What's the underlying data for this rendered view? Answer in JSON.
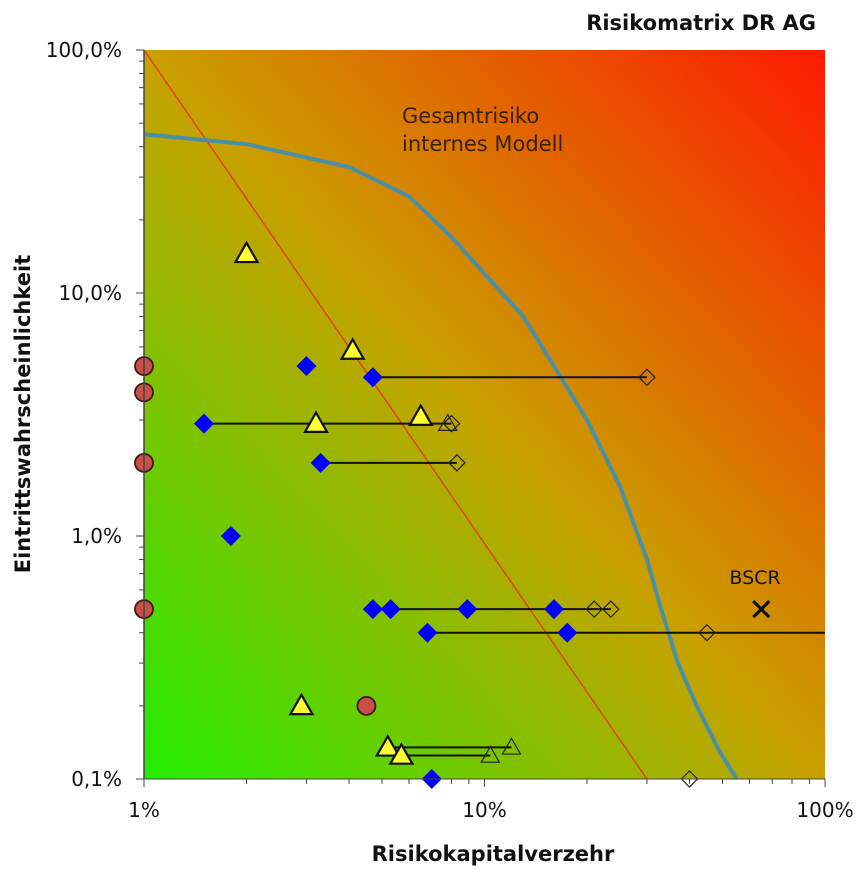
{
  "chart_data": {
    "type": "scatter",
    "title": "Risikomatrix DR AG",
    "xlabel": "Risikokapitalverzehr",
    "ylabel": "Eintrittswahrscheinlichkeit",
    "x_scale": "log",
    "y_scale": "log",
    "xlim": [
      0.01,
      1.0
    ],
    "ylim": [
      0.001,
      1.0
    ],
    "x_ticks": [
      {
        "value": 0.01,
        "label": "1%"
      },
      {
        "value": 0.1,
        "label": "10%"
      },
      {
        "value": 1.0,
        "label": "100%"
      }
    ],
    "y_ticks": [
      {
        "value": 0.001,
        "label": "0,1%"
      },
      {
        "value": 0.01,
        "label": "1,0%"
      },
      {
        "value": 0.1,
        "label": "10,0%"
      },
      {
        "value": 1.0,
        "label": "100,0%"
      }
    ],
    "background_gradient": {
      "bottom_left": "#22ee00",
      "middle": "#c9a000",
      "top_right": "#ff1a00"
    },
    "annotations": [
      {
        "text_lines": [
          "Gesamtrisiko",
          "internes Modell"
        ],
        "x": 0.047,
        "y": 0.52
      },
      {
        "text": "BSCR",
        "x": 0.62,
        "y": 0.0007
      }
    ],
    "series": [
      {
        "marker": "circle",
        "color": "#c9504a",
        "points": [
          [
            0.01,
            0.05
          ],
          [
            0.01,
            0.039
          ],
          [
            0.01,
            0.02
          ],
          [
            0.01,
            0.005
          ],
          [
            0.045,
            0.002
          ]
        ]
      },
      {
        "marker": "triangle",
        "color": "#ffff33",
        "points": [
          [
            0.02,
            0.145
          ],
          [
            0.041,
            0.058
          ],
          [
            0.032,
            0.029
          ],
          [
            0.065,
            0.031
          ],
          [
            0.029,
            0.002
          ],
          [
            0.052,
            0.00135
          ],
          [
            0.057,
            0.00125
          ]
        ]
      },
      {
        "marker": "diamond",
        "color": "#0000ff",
        "points": [
          [
            0.03,
            0.05
          ],
          [
            0.047,
            0.045
          ],
          [
            0.015,
            0.029
          ],
          [
            0.033,
            0.02
          ],
          [
            0.018,
            0.01
          ],
          [
            0.047,
            0.005
          ],
          [
            0.053,
            0.005
          ],
          [
            0.089,
            0.005
          ],
          [
            0.16,
            0.005
          ],
          [
            0.068,
            0.004
          ],
          [
            0.175,
            0.004
          ],
          [
            0.07,
            0.001
          ]
        ]
      },
      {
        "marker": "open-diamond",
        "color": "#222222",
        "points": [
          [
            0.3,
            0.045
          ],
          [
            0.08,
            0.029
          ],
          [
            0.083,
            0.02
          ],
          [
            0.21,
            0.005
          ],
          [
            0.235,
            0.005
          ],
          [
            0.45,
            0.004
          ],
          [
            0.4,
            0.001
          ]
        ]
      },
      {
        "marker": "open-triangle",
        "color": "#222222",
        "points": [
          [
            0.078,
            0.029
          ],
          [
            0.12,
            0.00135
          ],
          [
            0.104,
            0.00125
          ]
        ]
      },
      {
        "marker": "cross",
        "color": "#111111",
        "points": [
          [
            0.65,
            0.005
          ]
        ]
      }
    ],
    "ranges": [
      {
        "y": 0.045,
        "x_from": 0.047,
        "x_to": 0.3
      },
      {
        "y": 0.029,
        "x_from": 0.015,
        "x_to": 0.08
      },
      {
        "y": 0.02,
        "x_from": 0.033,
        "x_to": 0.083
      },
      {
        "y": 0.005,
        "x_from": 0.047,
        "x_to": 0.235
      },
      {
        "y": 0.004,
        "x_from": 0.068,
        "x_to": 1.0
      },
      {
        "y": 0.00135,
        "x_from": 0.052,
        "x_to": 0.12
      },
      {
        "y": 0.00125,
        "x_from": 0.057,
        "x_to": 0.104
      }
    ],
    "reference_line": {
      "color": "#e04010",
      "points": [
        [
          0.01,
          1.0
        ],
        [
          0.3,
          0.001
        ]
      ]
    },
    "curve": {
      "name": "Gesamtrisiko internes Modell",
      "color": "#4a8fa8",
      "points": [
        [
          0.01,
          0.45
        ],
        [
          0.02,
          0.41
        ],
        [
          0.04,
          0.33
        ],
        [
          0.06,
          0.25
        ],
        [
          0.08,
          0.17
        ],
        [
          0.1,
          0.12
        ],
        [
          0.13,
          0.08
        ],
        [
          0.16,
          0.05
        ],
        [
          0.2,
          0.03
        ],
        [
          0.25,
          0.016
        ],
        [
          0.3,
          0.008
        ],
        [
          0.33,
          0.005
        ],
        [
          0.37,
          0.003
        ],
        [
          0.42,
          0.002
        ],
        [
          0.49,
          0.0013
        ],
        [
          0.55,
          0.001
        ]
      ]
    }
  }
}
